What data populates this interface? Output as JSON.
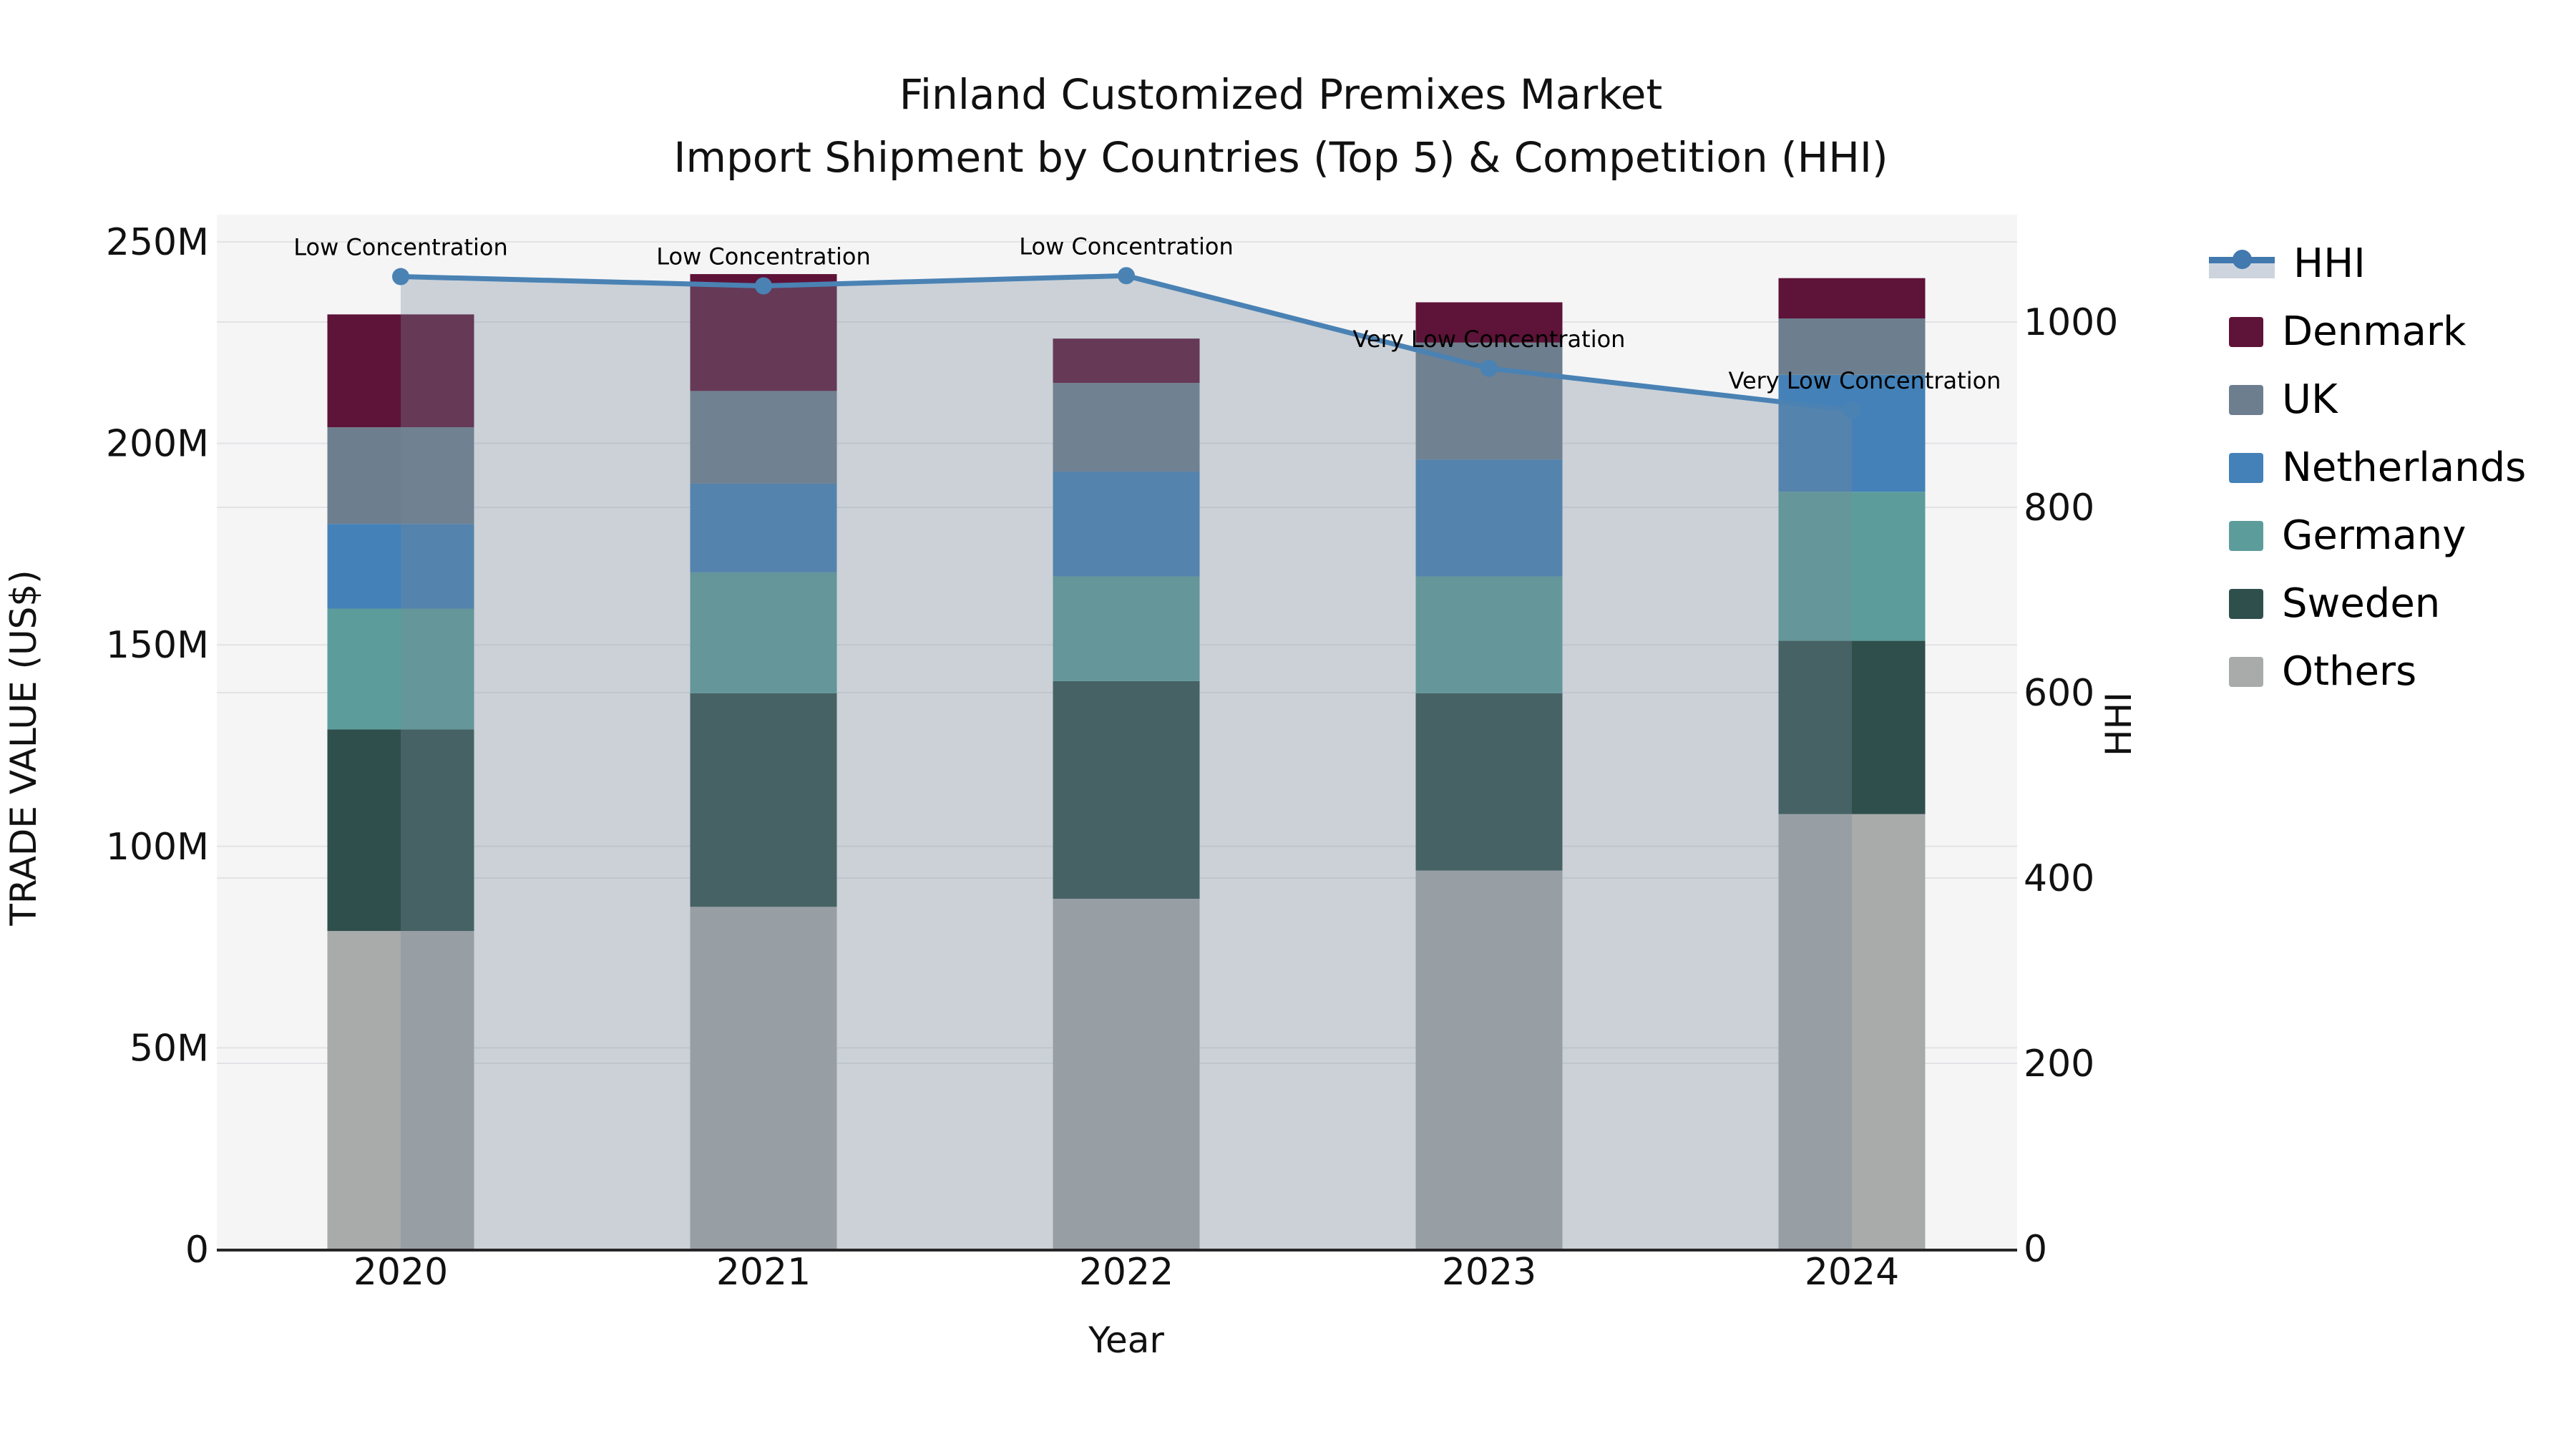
{
  "title": {
    "line1": "Finland Customized Premixes Market",
    "line2": "Import Shipment by Countries (Top 5) & Competition (HHI)"
  },
  "colors": {
    "denmark": "#5E1338",
    "uk": "#6D7E8E",
    "netherlands": "#4381B8",
    "germany": "#5C9D9C",
    "sweden": "#2F4F4C",
    "others": "#A9ABAA",
    "hhi_line": "#4A82B4",
    "hhi_area": "rgba(119,136,153,0.33)",
    "plot_bg": "#F5F5F6",
    "grid": "#E3E3E6",
    "axis_line": "#262626",
    "text": "#111111"
  },
  "legend": {
    "items": [
      {
        "label": "HHI",
        "kind": "line",
        "color": "#4A82B4"
      },
      {
        "label": "Denmark",
        "kind": "swatch",
        "color": "#5E1338"
      },
      {
        "label": "UK",
        "kind": "swatch",
        "color": "#6D7E8E"
      },
      {
        "label": "Netherlands",
        "kind": "swatch",
        "color": "#4381B8"
      },
      {
        "label": "Germany",
        "kind": "swatch",
        "color": "#5C9D9C"
      },
      {
        "label": "Sweden",
        "kind": "swatch",
        "color": "#2F4F4C"
      },
      {
        "label": "Others",
        "kind": "swatch",
        "color": "#A9ABAA"
      }
    ]
  },
  "chart_data": {
    "type": "bar",
    "subtype": "stacked bars (left axis, US$) + HHI line with shaded area (right axis)",
    "categories": [
      "2020",
      "2021",
      "2022",
      "2023",
      "2024"
    ],
    "bar_unit": "US$ millions",
    "bar_series": [
      {
        "name": "Others",
        "color": "#A9ABAA",
        "values": [
          79,
          85,
          87,
          94,
          108
        ]
      },
      {
        "name": "Sweden",
        "color": "#2F4F4C",
        "values": [
          50,
          53,
          54,
          44,
          43
        ]
      },
      {
        "name": "Germany",
        "color": "#5C9D9C",
        "values": [
          30,
          30,
          26,
          29,
          37
        ]
      },
      {
        "name": "Netherlands",
        "color": "#4381B8",
        "values": [
          21,
          22,
          26,
          29,
          29
        ]
      },
      {
        "name": "UK",
        "color": "#6D7E8E",
        "values": [
          24,
          23,
          22,
          29,
          14
        ]
      },
      {
        "name": "Denmark",
        "color": "#5E1338",
        "values": [
          28,
          29,
          11,
          10,
          10
        ]
      }
    ],
    "bar_totals_musd": [
      232,
      242,
      226,
      235,
      241
    ],
    "line_series": {
      "name": "HHI",
      "axis": "right",
      "color": "#4A82B4",
      "values": [
        1049,
        1039,
        1050,
        950,
        905
      ]
    },
    "annotations": [
      {
        "category": "2020",
        "text": "Low Concentration"
      },
      {
        "category": "2021",
        "text": "Low Concentration"
      },
      {
        "category": "2022",
        "text": "Low Concentration"
      },
      {
        "category": "2023",
        "text": "Very Low Concentration"
      },
      {
        "category": "2024",
        "text": "Very Low Concentration"
      }
    ],
    "axis_x": {
      "label": "Year",
      "ticks": [
        "2020",
        "2021",
        "2022",
        "2023",
        "2024"
      ]
    },
    "axis_left": {
      "label": "TRADE VALUE (US$)",
      "ticks": [
        {
          "v": 0,
          "label": "0"
        },
        {
          "v": 50,
          "label": "50M"
        },
        {
          "v": 100,
          "label": "100M"
        },
        {
          "v": 150,
          "label": "150M"
        },
        {
          "v": 200,
          "label": "200M"
        },
        {
          "v": 250,
          "label": "250M"
        }
      ]
    },
    "axis_right": {
      "label": "HHI",
      "ticks": [
        {
          "v": 0,
          "label": "0"
        },
        {
          "v": 200,
          "label": "200"
        },
        {
          "v": 400,
          "label": "400"
        },
        {
          "v": 600,
          "label": "600"
        },
        {
          "v": 800,
          "label": "800"
        },
        {
          "v": 1000,
          "label": "1000"
        }
      ]
    },
    "grid": true,
    "legend_position": "right"
  }
}
